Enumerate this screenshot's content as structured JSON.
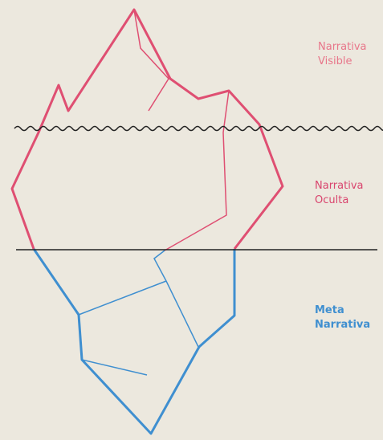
{
  "labels": [
    {
      "line1": "Narrativa",
      "line2": "Visible"
    },
    {
      "line1": "Narrativa",
      "line2": "Oculta"
    },
    {
      "line1": "Meta",
      "line2": "Narrativa"
    }
  ]
}
